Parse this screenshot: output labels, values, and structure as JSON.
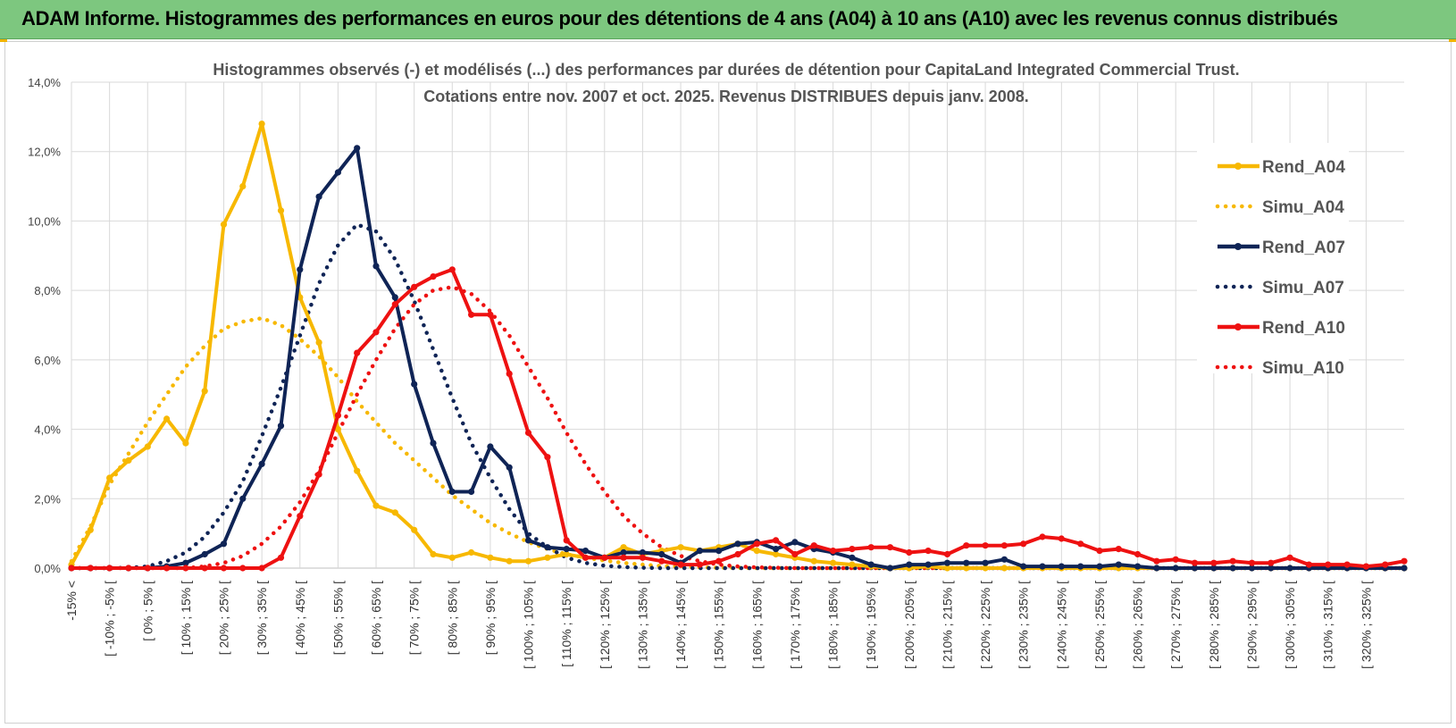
{
  "header": {
    "title": "ADAM Informe. Histogrammes des performances en euros pour des détentions de 4 ans (A04) à 10 ans (A10) avec les revenus connus distribués"
  },
  "colors": {
    "banner": "#7dc77f",
    "A04": "#f7b800",
    "A07": "#0f2456",
    "A10": "#ee1111",
    "grid": "#d9d9d9"
  },
  "chart_data": {
    "type": "line",
    "title_line1": "Histogrammes observés (-) et modélisés (...) des performances par durées de détention pour CapitaLand Integrated Commercial Trust.",
    "title_line2": "Cotations entre nov. 2007 et oct. 2025.  Revenus DISTRIBUES depuis janv. 2008.",
    "ylim": [
      0,
      14
    ],
    "y_ticks": [
      "0,0%",
      "2,0%",
      "4,0%",
      "6,0%",
      "8,0%",
      "10,0%",
      "12,0%",
      "14,0%"
    ],
    "x_labels": [
      "-15% <",
      "[ -10% ; -5% [",
      "[ 0% ; 5% [",
      "[ 10% ; 15% [",
      "[ 20% ; 25% [",
      "[ 30% ; 35% [",
      "[ 40% ; 45% [",
      "[ 50% ; 55% [",
      "[ 60% ; 65% [",
      "[ 70% ; 75% [",
      "[ 80% ; 85% [",
      "[ 90% ; 95% [",
      "[ 100% ; 105% [",
      "[ 110% ; 115% [",
      "[ 120% ; 125% [",
      "[ 130% ; 135% [",
      "[ 140% ; 145% [",
      "[ 150% ; 155% [",
      "[ 160% ; 165% [",
      "[ 170% ; 175% [",
      "[ 180% ; 185% [",
      "[ 190% ; 195% [",
      "[ 200% ; 205% [",
      "[ 210% ; 215% [",
      "[ 220% ; 225% [",
      "[ 230% ; 235% [",
      "[ 240% ; 245% [",
      "[ 250% ; 255% [",
      "[ 260% ; 265% [",
      "[ 270% ; 275% [",
      "[ 280% ; 285% [",
      "[ 290% ; 295% [",
      "[ 300% ; 305% [",
      "[ 310% ; 315% [",
      "[ 320% ; 325% ["
    ],
    "series": [
      {
        "name": "Rend_A04",
        "style": "solid",
        "color": "#f7b800",
        "values": [
          0.1,
          1.1,
          2.6,
          3.1,
          3.5,
          4.3,
          3.6,
          5.1,
          9.9,
          11.0,
          12.8,
          10.3,
          7.8,
          6.5,
          4.0,
          2.8,
          1.8,
          1.6,
          1.1,
          0.4,
          0.3,
          0.45,
          0.3,
          0.2,
          0.2,
          0.3,
          0.4,
          0.3,
          0.3,
          0.6,
          0.4,
          0.5,
          0.6,
          0.5,
          0.6,
          0.7,
          0.5,
          0.4,
          0.3,
          0.2,
          0.15,
          0.1,
          0.05,
          0.0,
          0.0,
          0.05,
          0.0,
          0.0,
          0.0,
          0.0,
          0.0,
          0.0,
          0.0,
          0.0,
          0.0,
          0.0,
          0.0,
          0.0,
          0.0,
          0.0,
          0.0,
          0.0,
          0.0,
          0.0,
          0.0,
          0.0,
          0.0,
          0.0,
          0.0,
          0.0,
          0.0
        ]
      },
      {
        "name": "Simu_A04",
        "style": "dotted",
        "color": "#f7b800",
        "values": [
          0.2,
          1.2,
          2.4,
          3.3,
          4.2,
          5.0,
          5.8,
          6.4,
          6.9,
          7.1,
          7.2,
          7.0,
          6.6,
          6.1,
          5.5,
          4.8,
          4.2,
          3.6,
          3.1,
          2.6,
          2.1,
          1.7,
          1.3,
          1.0,
          0.75,
          0.55,
          0.4,
          0.3,
          0.22,
          0.15,
          0.1,
          0.06,
          0.04,
          0.02,
          0.01,
          0.01,
          0.0,
          0.0,
          0.0,
          0.0,
          0.0,
          0.0,
          0.0,
          0.0,
          0.0,
          0.0,
          0.0,
          0.0,
          0.0,
          0.0,
          0.0,
          0.0,
          0.0,
          0.0,
          0.0,
          0.0,
          0.0,
          0.0,
          0.0,
          0.0,
          0.0,
          0.0,
          0.0,
          0.0,
          0.0,
          0.0,
          0.0,
          0.0,
          0.0,
          0.0,
          0.0
        ]
      },
      {
        "name": "Rend_A07",
        "style": "solid",
        "color": "#0f2456",
        "values": [
          0.0,
          0.0,
          0.0,
          0.0,
          0.0,
          0.05,
          0.15,
          0.4,
          0.7,
          2.0,
          3.0,
          4.1,
          8.6,
          10.7,
          11.4,
          12.1,
          8.7,
          7.8,
          5.3,
          3.6,
          2.2,
          2.2,
          3.5,
          2.9,
          0.8,
          0.6,
          0.55,
          0.5,
          0.3,
          0.45,
          0.45,
          0.4,
          0.15,
          0.5,
          0.5,
          0.7,
          0.75,
          0.55,
          0.75,
          0.55,
          0.45,
          0.3,
          0.1,
          0.0,
          0.1,
          0.1,
          0.15,
          0.15,
          0.15,
          0.25,
          0.05,
          0.05,
          0.05,
          0.05,
          0.05,
          0.1,
          0.05,
          0.0,
          0.0,
          0.0,
          0.0,
          0.0,
          0.0,
          0.0,
          0.0,
          0.0,
          0.0,
          0.0,
          0.0,
          0.0,
          0.0
        ]
      },
      {
        "name": "Simu_A07",
        "style": "dotted",
        "color": "#0f2456",
        "values": [
          0.0,
          0.0,
          0.0,
          0.01,
          0.05,
          0.2,
          0.45,
          0.9,
          1.6,
          2.5,
          3.8,
          5.2,
          6.7,
          8.2,
          9.3,
          9.9,
          9.7,
          8.9,
          7.7,
          6.3,
          4.9,
          3.6,
          2.6,
          1.7,
          1.0,
          0.6,
          0.3,
          0.15,
          0.07,
          0.03,
          0.01,
          0.0,
          0.0,
          0.0,
          0.0,
          0.0,
          0.0,
          0.0,
          0.0,
          0.0,
          0.0,
          0.0,
          0.0,
          0.0,
          0.0,
          0.0,
          0.0,
          0.0,
          0.0,
          0.0,
          0.0,
          0.0,
          0.0,
          0.0,
          0.0,
          0.0,
          0.0,
          0.0,
          0.0,
          0.0,
          0.0,
          0.0,
          0.0,
          0.0,
          0.0,
          0.0,
          0.0,
          0.0,
          0.0,
          0.0,
          0.0
        ]
      },
      {
        "name": "Rend_A10",
        "style": "solid",
        "color": "#ee1111",
        "values": [
          0.0,
          0.0,
          0.0,
          0.0,
          0.0,
          0.0,
          0.0,
          0.0,
          0.0,
          0.0,
          0.0,
          0.3,
          1.5,
          2.7,
          4.4,
          6.2,
          6.8,
          7.6,
          8.1,
          8.4,
          8.6,
          7.3,
          7.3,
          5.6,
          3.9,
          3.2,
          0.8,
          0.3,
          0.3,
          0.3,
          0.3,
          0.2,
          0.1,
          0.1,
          0.2,
          0.4,
          0.7,
          0.8,
          0.4,
          0.65,
          0.5,
          0.55,
          0.6,
          0.6,
          0.45,
          0.5,
          0.4,
          0.65,
          0.65,
          0.65,
          0.7,
          0.9,
          0.85,
          0.7,
          0.5,
          0.55,
          0.4,
          0.2,
          0.25,
          0.15,
          0.15,
          0.2,
          0.15,
          0.15,
          0.3,
          0.1,
          0.1,
          0.1,
          0.05,
          0.1,
          0.2
        ]
      },
      {
        "name": "Simu_A10",
        "style": "dotted",
        "color": "#ee1111",
        "values": [
          0.0,
          0.0,
          0.0,
          0.0,
          0.0,
          0.0,
          0.0,
          0.05,
          0.15,
          0.35,
          0.7,
          1.2,
          1.9,
          2.8,
          3.9,
          5.0,
          6.0,
          6.9,
          7.6,
          8.0,
          8.1,
          7.9,
          7.4,
          6.7,
          5.8,
          4.9,
          3.9,
          3.0,
          2.2,
          1.5,
          1.0,
          0.6,
          0.35,
          0.2,
          0.1,
          0.05,
          0.02,
          0.01,
          0.0,
          0.0,
          0.0,
          0.0,
          0.0,
          0.0,
          0.0,
          0.0,
          0.0,
          0.0,
          0.0,
          0.0,
          0.0,
          0.0,
          0.0,
          0.0,
          0.0,
          0.0,
          0.0,
          0.0,
          0.0,
          0.0,
          0.0,
          0.0,
          0.0,
          0.0,
          0.0,
          0.0,
          0.0,
          0.0,
          0.0,
          0.0,
          0.0
        ]
      }
    ],
    "legend_position": "right"
  }
}
